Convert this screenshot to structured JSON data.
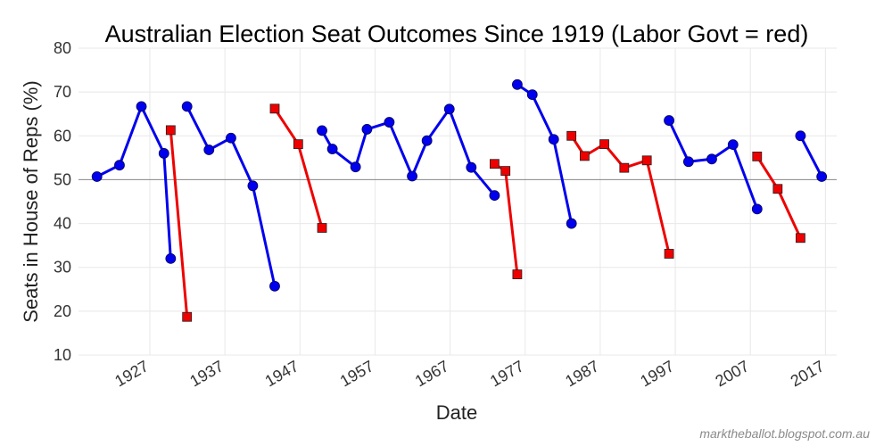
{
  "chart_data": {
    "type": "line",
    "title": "Australian Election Seat Outcomes Since 1919 (Labor Govt = red)",
    "xlabel": "Date",
    "ylabel": "Seats in House of Reps (%)",
    "credit": "marktheballot.blogspot.com.au",
    "xlim": [
      1917.5,
      2018.5
    ],
    "ylim": [
      10,
      80
    ],
    "xticks": [
      1927,
      1937,
      1947,
      1957,
      1967,
      1977,
      1987,
      1997,
      2007,
      2017
    ],
    "yticks": [
      10,
      20,
      30,
      40,
      50,
      60,
      70,
      80
    ],
    "reference_line": 50,
    "grid": true,
    "colors": {
      "coalition": "#0000ee",
      "labor": "#ee0000",
      "reference": "#888888"
    },
    "series": [
      {
        "party": "coalition",
        "marker": "circle",
        "x": [
          1919.96,
          1922.96,
          1925.88,
          1928.88,
          1929.78
        ],
        "y": [
          50.7,
          53.3,
          66.7,
          56.0,
          32.0
        ]
      },
      {
        "party": "labor",
        "marker": "square",
        "x": [
          1929.78,
          1931.96
        ],
        "y": [
          61.3,
          18.7
        ]
      },
      {
        "party": "coalition",
        "marker": "circle",
        "x": [
          1931.96,
          1934.88,
          1937.81,
          1940.72,
          1943.64
        ],
        "y": [
          66.7,
          56.8,
          59.5,
          48.6,
          25.7
        ]
      },
      {
        "party": "labor",
        "marker": "square",
        "x": [
          1943.64,
          1946.77,
          1949.94
        ],
        "y": [
          66.2,
          58.1,
          39.0
        ]
      },
      {
        "party": "coalition",
        "marker": "circle",
        "x": [
          1949.94,
          1951.32,
          1954.41,
          1955.93,
          1958.9,
          1961.95,
          1963.92,
          1966.9,
          1969.82,
          1972.92
        ],
        "y": [
          61.2,
          57.0,
          52.9,
          61.5,
          63.1,
          50.8,
          58.9,
          66.1,
          52.8,
          46.4
        ]
      },
      {
        "party": "labor",
        "marker": "square",
        "x": [
          1972.92,
          1974.38,
          1975.95
        ],
        "y": [
          53.6,
          52.0,
          28.4
        ]
      },
      {
        "party": "coalition",
        "marker": "circle",
        "x": [
          1975.95,
          1977.95,
          1980.8,
          1983.17
        ],
        "y": [
          71.7,
          69.4,
          59.2,
          40.0
        ]
      },
      {
        "party": "labor",
        "marker": "square",
        "x": [
          1983.17,
          1984.92,
          1987.55,
          1990.2,
          1993.21,
          1996.17
        ],
        "y": [
          60.0,
          55.4,
          58.1,
          52.7,
          54.4,
          33.1
        ]
      },
      {
        "party": "coalition",
        "marker": "circle",
        "x": [
          1996.17,
          1998.76,
          2001.86,
          2004.69,
          2007.9
        ],
        "y": [
          63.5,
          54.1,
          54.7,
          58.0,
          43.3
        ]
      },
      {
        "party": "labor",
        "marker": "square",
        "x": [
          2007.9,
          2010.64,
          2013.68
        ],
        "y": [
          55.3,
          47.9,
          36.7
        ]
      },
      {
        "party": "coalition",
        "marker": "circle",
        "x": [
          2013.68,
          2016.5
        ],
        "y": [
          60.0,
          50.7
        ]
      }
    ]
  }
}
